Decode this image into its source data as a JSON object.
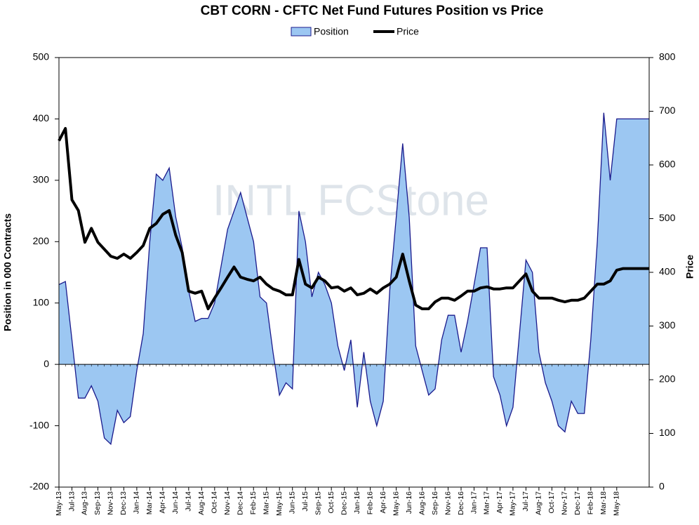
{
  "chart_data": {
    "type": "area-line",
    "title": "CBT CORN - CFTC Net Fund Futures Position vs Price",
    "watermark": "INTL FCStone",
    "y_label": "Position in 000 Contracts",
    "y2_label": "Price",
    "categories": [
      "May-13",
      null,
      "Jul-13",
      null,
      "Aug-13",
      null,
      "Sep-13",
      null,
      "Nov-13",
      null,
      "Dec-13",
      null,
      "Jan-14",
      null,
      "Mar-14",
      null,
      "Apr-14",
      null,
      "Jun-14",
      null,
      "Jul-14",
      null,
      "Aug-14",
      null,
      "Oct-14",
      null,
      "Nov-14",
      null,
      "Dec-14",
      null,
      "Feb-15",
      null,
      "Mar-15",
      null,
      "May-15",
      null,
      "Jun-15",
      null,
      "Jul-15",
      null,
      "Sep-15",
      null,
      "Oct-15",
      null,
      "Dec-15",
      null,
      "Jan-16",
      null,
      "Feb-16",
      null,
      "Apr-16",
      null,
      "May-16",
      null,
      "Jun-16",
      null,
      "Aug-16",
      null,
      "Sep-16",
      null,
      "Nov-16",
      null,
      "Dec-16",
      null,
      "Jan-17",
      null,
      "Mar-17",
      null,
      "Apr-17",
      null,
      "May-17",
      null,
      "Jul-17",
      null,
      "Aug-17",
      null,
      "Oct-17",
      null,
      "Nov-17",
      null,
      "Dec-17",
      null,
      "Feb-18",
      null,
      "Mar-18",
      null,
      "May-18",
      null,
      null,
      null,
      null,
      null
    ],
    "series": [
      {
        "name": "Position",
        "color": "#9cc7f2",
        "stroke": "#1a1a8c",
        "axis": "y",
        "values": [
          130,
          135,
          40,
          -55,
          -55,
          -35,
          -60,
          -120,
          -130,
          -75,
          -95,
          -85,
          -10,
          50,
          200,
          310,
          300,
          320,
          240,
          190,
          120,
          70,
          75,
          75,
          100,
          160,
          220,
          250,
          280,
          240,
          200,
          110,
          100,
          20,
          -50,
          -30,
          -40,
          250,
          200,
          110,
          150,
          130,
          100,
          30,
          -10,
          40,
          -70,
          20,
          -60,
          -100,
          -60,
          120,
          240,
          360,
          240,
          30,
          -10,
          -50,
          -40,
          40,
          80,
          80,
          20,
          70,
          130,
          190,
          190,
          -20,
          -50,
          -100,
          -70,
          50,
          170,
          150,
          20,
          -30,
          -60,
          -100,
          -110,
          -60,
          -80,
          -80,
          40,
          200,
          410,
          300,
          400,
          400,
          400,
          400,
          400,
          400
        ]
      },
      {
        "name": "Price",
        "color": "#000000",
        "axis": "y2",
        "values": [
          645,
          668,
          535,
          515,
          456,
          482,
          456,
          443,
          430,
          426,
          434,
          426,
          437,
          450,
          482,
          491,
          508,
          515,
          469,
          437,
          365,
          361,
          365,
          332,
          352,
          371,
          391,
          410,
          391,
          387,
          384,
          391,
          378,
          369,
          365,
          358,
          358,
          424,
          378,
          371,
          391,
          384,
          371,
          373,
          365,
          371,
          358,
          361,
          369,
          361,
          371,
          378,
          391,
          434,
          384,
          339,
          332,
          332,
          345,
          352,
          352,
          348,
          356,
          365,
          365,
          371,
          373,
          369,
          369,
          371,
          371,
          384,
          397,
          365,
          352,
          352,
          352,
          348,
          345,
          348,
          348,
          352,
          365,
          378,
          378,
          384,
          404,
          407,
          407,
          407,
          407,
          407
        ]
      }
    ],
    "ylim": [
      -200,
      500
    ],
    "yticks": [
      -200,
      -100,
      0,
      100,
      200,
      300,
      400,
      500
    ],
    "y2lim": [
      0,
      800
    ],
    "y2ticks": [
      0,
      100,
      200,
      300,
      400,
      500,
      600,
      700,
      800
    ],
    "legend": "top"
  }
}
